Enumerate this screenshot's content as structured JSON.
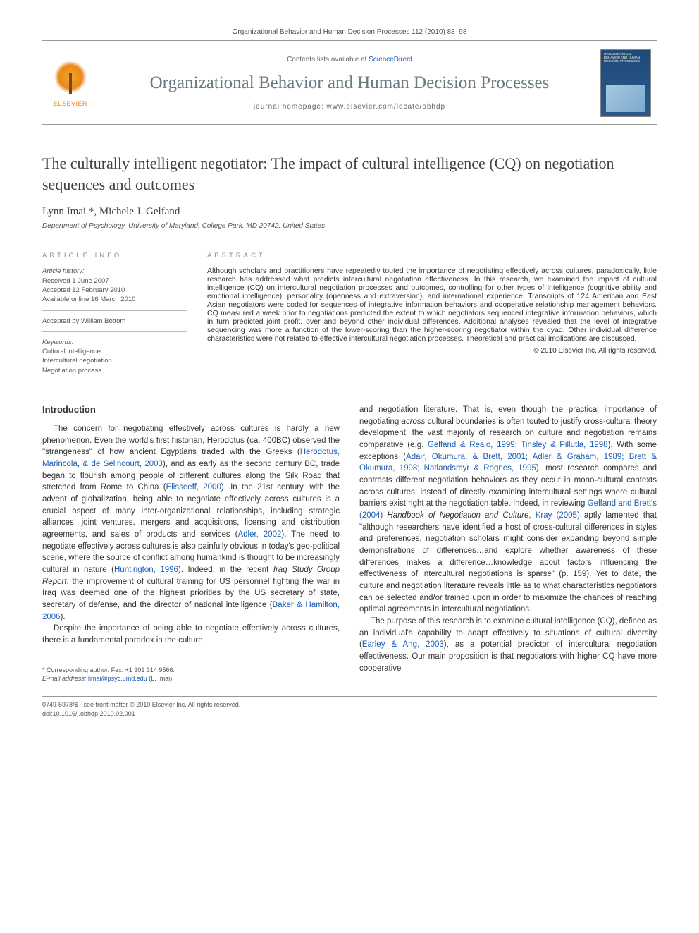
{
  "header": {
    "citation": "Organizational Behavior and Human Decision Processes 112 (2010) 83–98",
    "contents_prefix": "Contents lists available at ",
    "contents_link": "ScienceDirect",
    "journal_title": "Organizational Behavior and Human Decision Processes",
    "homepage_prefix": "journal homepage: ",
    "homepage_url": "www.elsevier.com/locate/obhdp",
    "elsevier_label": "ELSEVIER",
    "cover_text": "ORGANIZATIONAL BEHAVIOR AND HUMAN DECISION PROCESSES"
  },
  "article": {
    "title": "The culturally intelligent negotiator: The impact of cultural intelligence (CQ) on negotiation sequences and outcomes",
    "authors": "Lynn Imai *, Michele J. Gelfand",
    "affiliation": "Department of Psychology, University of Maryland, College Park, MD 20742, United States"
  },
  "info": {
    "label": "ARTICLE INFO",
    "history_label": "Article history:",
    "history_received": "Received 1 June 2007",
    "history_accepted": "Accepted 12 February 2010",
    "history_online": "Available online 16 March 2010",
    "editor": "Accepted by William Bottom",
    "keywords_label": "Keywords:",
    "keyword1": "Cultural intelligence",
    "keyword2": "Intercultural negotiation",
    "keyword3": "Negotiation process"
  },
  "abstract": {
    "label": "ABSTRACT",
    "text": "Although scholars and practitioners have repeatedly touted the importance of negotiating effectively across cultures, paradoxically, little research has addressed what predicts intercultural negotiation effectiveness. In this research, we examined the impact of cultural intelligence (CQ) on intercultural negotiation processes and outcomes, controlling for other types of intelligence (cognitive ability and emotional intelligence), personality (openness and extraversion), and international experience. Transcripts of 124 American and East Asian negotiators were coded for sequences of integrative information behaviors and cooperative relationship management behaviors. CQ measured a week prior to negotiations predicted the extent to which negotiators sequenced integrative information behaviors, which in turn predicted joint profit, over and beyond other individual differences. Additional analyses revealed that the level of integrative sequencing was more a function of the lower-scoring than the higher-scoring negotiator within the dyad. Other individual difference characteristics were not related to effective intercultural negotiation processes. Theoretical and practical implications are discussed.",
    "copyright": "© 2010 Elsevier Inc. All rights reserved."
  },
  "body": {
    "intro_heading": "Introduction",
    "p1a": "The concern for negotiating effectively across cultures is hardly a new phenomenon. Even the world's first historian, Herodotus (ca. 400BC) observed the \"strangeness\" of how ancient Egyptians traded with the Greeks (",
    "r1": "Herodotus, Marincola, & de Selincourt, 2003",
    "p1b": "), and as early as the second century BC, trade began to flourish among people of different cultures along the Silk Road that stretched from Rome to China (",
    "r2": "Elisseeff, 2000",
    "p1c": "). In the 21st century, with the advent of globalization, being able to negotiate effectively across cultures is a crucial aspect of many inter-organizational relationships, including strategic alliances, joint ventures, mergers and acquisitions, licensing and distribution agreements, and sales of products and services (",
    "r3": "Adler, 2002",
    "p1d": "). The need to negotiate effectively across cultures is also painfully obvious in today's geo-political scene, where the source of conflict among humankind is thought to be increasingly cultural in nature (",
    "r4": "Huntington, 1996",
    "p1e": "). Indeed, in the recent ",
    "p1f_italic": "Iraq Study Group Report",
    "p1g": ", the improvement of cultural training for US personnel fighting the war in Iraq was deemed one of the highest priorities by the US secretary of state, secretary of defense, and the director of national intelligence (",
    "r5": "Baker & Hamilton, 2006",
    "p1h": ").",
    "p2": "Despite the importance of being able to negotiate effectively across cultures, there is a fundamental paradox in the culture",
    "p3a": "and negotiation literature. That is, even though the practical importance of negotiating ",
    "p3b_italic": "across",
    "p3c": " cultural boundaries is often touted to justify cross-cultural theory development, the vast majority of research on culture and negotiation remains comparative (e.g. ",
    "r6": "Gelfand & Realo, 1999; Tinsley & Pillutla, 1998",
    "p3d": "). With some exceptions (",
    "r7": "Adair, Okumura, & Brett, 2001; Adler & Graham, 1989; Brett & Okumura, 1998; Natlandsmyr & Rognes, 1995",
    "p3e": "), most research compares and contrasts different negotiation behaviors as they occur in mono-cultural contexts across cultures, instead of directly examining intercultural settings where cultural barriers exist right at the negotiation table. Indeed, in reviewing ",
    "r8": "Gelfand and Brett's (2004)",
    "p3f": " ",
    "p3g_italic": "Handbook of Negotiation and Culture",
    "p3h": ", ",
    "r9": "Kray (2005)",
    "p3i": " aptly lamented that \"although researchers have identified a host of cross-cultural differences in styles and preferences, negotiation scholars might consider expanding beyond simple demonstrations of differences…and explore whether awareness of these differences makes a difference…knowledge about factors influencing the effectiveness of intercultural negotiations is sparse\" (p. 159). Yet to date, the culture and negotiation literature reveals little as to what characteristics negotiators can be selected and/or trained upon in order to maximize the chances of reaching optimal agreements in intercultural negotiations.",
    "p4a": "The purpose of this research is to examine cultural intelligence (CQ), defined as an individual's capability to adapt effectively to situations of cultural diversity (",
    "r10": "Earley & Ang, 2003",
    "p4b": "), as a potential predictor of intercultural negotiation effectiveness. Our main proposition is that negotiators with higher CQ have more cooperative"
  },
  "footnotes": {
    "corr": "* Corresponding author. Fax: +1 301 314 9566.",
    "email_label": "E-mail address:",
    "email": "limai@psyc.umd.edu",
    "email_name": "(L. Imai)."
  },
  "footer": {
    "line1": "0749-5978/$ - see front matter © 2010 Elsevier Inc. All rights reserved.",
    "line2": "doi:10.1016/j.obhdp.2010.02.001"
  },
  "style": {
    "link_color": "#1a5db4",
    "text_color": "#333333",
    "muted_color": "#555555",
    "rule_color": "#999999",
    "background": "#ffffff"
  }
}
